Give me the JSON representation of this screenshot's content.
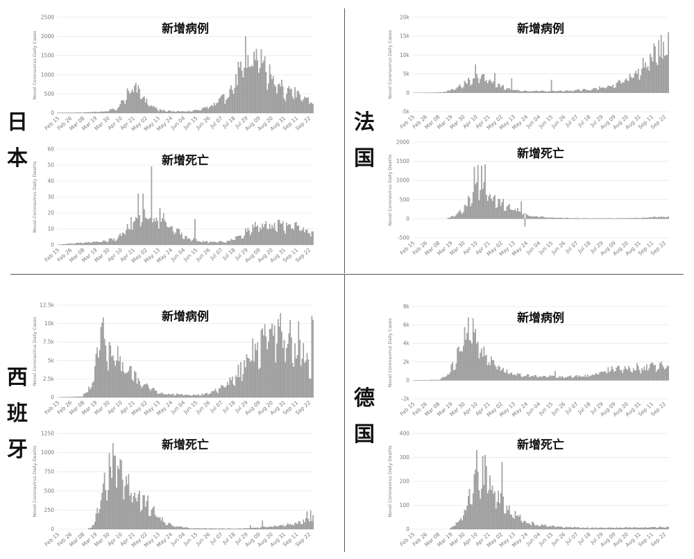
{
  "labels": {
    "japan": [
      "日",
      "本"
    ],
    "france": [
      "法",
      "国"
    ],
    "spain": [
      "西",
      "班",
      "牙"
    ],
    "germany": [
      "德",
      "国"
    ]
  },
  "chart_data": [
    {
      "type": "bar",
      "country": "japan",
      "title": "新增病例",
      "ylabel": "Novel Coronavirus Daily Cases",
      "ylim": [
        0,
        2500
      ],
      "yticks": [
        "0",
        "500",
        "1000",
        "1500",
        "2000",
        "2500"
      ],
      "xticks": [
        "Feb 15",
        "Feb 26",
        "Mar 08",
        "Mar 19",
        "Mar 30",
        "Apr 10",
        "Apr 21",
        "May 02",
        "May 13",
        "May 24",
        "Jun 04",
        "Jun 15",
        "Jun 26",
        "Jul 07",
        "Jul 18",
        "Jul 29",
        "Aug 09",
        "Aug 20",
        "Aug 31",
        "Sep 11",
        "Sep 22"
      ],
      "anchors": [
        [
          0,
          5
        ],
        [
          20,
          10
        ],
        [
          40,
          40
        ],
        [
          50,
          150
        ],
        [
          58,
          500
        ],
        [
          62,
          700
        ],
        [
          66,
          650
        ],
        [
          70,
          450
        ],
        [
          74,
          300
        ],
        [
          78,
          200
        ],
        [
          84,
          80
        ],
        [
          95,
          40
        ],
        [
          110,
          50
        ],
        [
          120,
          100
        ],
        [
          130,
          250
        ],
        [
          140,
          450
        ],
        [
          148,
          900
        ],
        [
          155,
          1400
        ],
        [
          160,
          1650
        ],
        [
          165,
          1500
        ],
        [
          170,
          1300
        ],
        [
          175,
          1100
        ],
        [
          180,
          900
        ],
        [
          185,
          700
        ],
        [
          192,
          550
        ],
        [
          200,
          520
        ],
        [
          207,
          450
        ],
        [
          212,
          270
        ]
      ],
      "spikes": [
        [
          156,
          2000
        ],
        [
          163,
          1600
        ]
      ]
    },
    {
      "type": "bar",
      "country": "japan",
      "title": "新增死亡",
      "ylabel": "Novel Coronavirus Daily Deaths",
      "ylim": [
        0,
        60
      ],
      "yticks": [
        "0",
        "10",
        "20",
        "30",
        "40",
        "50",
        "60"
      ],
      "xticks": [
        "Feb 15",
        "Feb 26",
        "Mar 08",
        "Mar 19",
        "Mar 30",
        "Apr 10",
        "Apr 21",
        "May 02",
        "May 13",
        "May 24",
        "Jun 04",
        "Jun 15",
        "Jun 26",
        "Jul 07",
        "Jul 18",
        "Jul 29",
        "Aug 09",
        "Aug 20",
        "Aug 31",
        "Sep 11",
        "Sep 22"
      ],
      "anchors": [
        [
          0,
          0
        ],
        [
          15,
          1
        ],
        [
          35,
          2
        ],
        [
          50,
          4
        ],
        [
          62,
          15
        ],
        [
          68,
          22
        ],
        [
          75,
          20
        ],
        [
          80,
          18
        ],
        [
          85,
          20
        ],
        [
          92,
          14
        ],
        [
          100,
          8
        ],
        [
          110,
          4
        ],
        [
          120,
          2
        ],
        [
          140,
          2
        ],
        [
          150,
          5
        ],
        [
          160,
          10
        ],
        [
          170,
          13
        ],
        [
          180,
          12
        ],
        [
          190,
          13
        ],
        [
          200,
          12
        ],
        [
          212,
          7
        ]
      ],
      "spikes": [
        [
          67,
          32
        ],
        [
          71,
          32
        ],
        [
          78,
          49
        ],
        [
          85,
          23
        ],
        [
          114,
          16
        ]
      ]
    },
    {
      "type": "bar",
      "country": "france",
      "title": "新增病例",
      "ylabel": "Novel Coronavirus Daily Cases",
      "ylim": [
        -5000,
        20000
      ],
      "yticks": [
        "-5k",
        "0",
        "5k",
        "10k",
        "15k",
        "20k"
      ],
      "xticks": [
        "Feb 15",
        "Feb 26",
        "Mar 08",
        "Mar 19",
        "Mar 30",
        "Apr 10",
        "Apr 21",
        "May 02",
        "May 13",
        "May 24",
        "Jun 04",
        "Jun 15",
        "Jun 26",
        "Jul 07",
        "Jul 18",
        "Jul 29",
        "Aug 09",
        "Aug 20",
        "Aug 31",
        "Sep 11",
        "Sep 22"
      ],
      "anchors": [
        [
          0,
          0
        ],
        [
          25,
          100
        ],
        [
          35,
          1000
        ],
        [
          45,
          3000
        ],
        [
          55,
          4500
        ],
        [
          65,
          3500
        ],
        [
          72,
          2000
        ],
        [
          80,
          1000
        ],
        [
          90,
          500
        ],
        [
          110,
          400
        ],
        [
          130,
          500
        ],
        [
          150,
          1000
        ],
        [
          165,
          2000
        ],
        [
          175,
          3500
        ],
        [
          185,
          5500
        ],
        [
          195,
          8500
        ],
        [
          205,
          12000
        ],
        [
          212,
          14000
        ]
      ],
      "spikes": [
        [
          52,
          7500
        ],
        [
          58,
          5000
        ],
        [
          68,
          5200
        ],
        [
          82,
          3800
        ],
        [
          115,
          3400
        ],
        [
          180,
          5000
        ],
        [
          212,
          16000
        ]
      ]
    },
    {
      "type": "bar",
      "country": "france",
      "title": "新增死亡",
      "ylabel": "Novel Coronavirus Daily Deaths",
      "ylim": [
        -500,
        2000
      ],
      "yticks": [
        "-500",
        "0",
        "500",
        "1000",
        "1500",
        "2000"
      ],
      "xticks": [
        "Feb 15",
        "Feb 26",
        "Mar 08",
        "Mar 19",
        "Mar 30",
        "Apr 10",
        "Apr 21",
        "May 02",
        "May 13",
        "May 24",
        "Jun 04",
        "Jun 15",
        "Jun 26",
        "Jul 07",
        "Jul 18",
        "Jul 29",
        "Aug 09",
        "Aug 20",
        "Aug 31",
        "Sep 11",
        "Sep 22"
      ],
      "anchors": [
        [
          0,
          0
        ],
        [
          28,
          0
        ],
        [
          35,
          80
        ],
        [
          43,
          300
        ],
        [
          50,
          700
        ],
        [
          56,
          900
        ],
        [
          62,
          700
        ],
        [
          70,
          500
        ],
        [
          78,
          350
        ],
        [
          85,
          250
        ],
        [
          92,
          150
        ],
        [
          100,
          60
        ],
        [
          115,
          25
        ],
        [
          140,
          10
        ],
        [
          170,
          10
        ],
        [
          190,
          20
        ],
        [
          200,
          40
        ],
        [
          212,
          50
        ]
      ],
      "spikes": [
        [
          51,
          1350
        ],
        [
          54,
          1400
        ],
        [
          57,
          1380
        ],
        [
          60,
          1420
        ],
        [
          90,
          450
        ],
        [
          93,
          -200
        ]
      ]
    },
    {
      "type": "bar",
      "country": "spain",
      "title": "新增病例",
      "ylabel": "Novel Coronavirus Daily Cases",
      "ylim": [
        0,
        12500
      ],
      "yticks": [
        "0",
        "2.5k",
        "5k",
        "7.5k",
        "10k",
        "12.5k"
      ],
      "xticks": [
        "Feb 15",
        "Feb 26",
        "Mar 08",
        "Mar 19",
        "Mar 30",
        "Apr 10",
        "Apr 21",
        "May 02",
        "May 13",
        "May 24",
        "Jun 04",
        "Jun 15",
        "Jun 26",
        "Jul 07",
        "Jul 18",
        "Jul 29",
        "Aug 09",
        "Aug 20",
        "Aug 31",
        "Sep 11",
        "Sep 22"
      ],
      "anchors": [
        [
          0,
          0
        ],
        [
          20,
          100
        ],
        [
          25,
          800
        ],
        [
          30,
          3000
        ],
        [
          33,
          7000
        ],
        [
          37,
          8000
        ],
        [
          42,
          7000
        ],
        [
          50,
          5500
        ],
        [
          58,
          3800
        ],
        [
          66,
          2500
        ],
        [
          76,
          1500
        ],
        [
          86,
          500
        ],
        [
          100,
          400
        ],
        [
          115,
          300
        ],
        [
          125,
          500
        ],
        [
          135,
          1200
        ],
        [
          145,
          2500
        ],
        [
          155,
          4500
        ],
        [
          165,
          7000
        ],
        [
          175,
          9000
        ],
        [
          185,
          9500
        ],
        [
          195,
          8000
        ],
        [
          205,
          5500
        ],
        [
          210,
          4500
        ],
        [
          212,
          10500
        ]
      ],
      "spikes": [
        [
          38,
          10800
        ],
        [
          200,
          10300
        ],
        [
          211,
          11000
        ]
      ]
    },
    {
      "type": "bar",
      "country": "spain",
      "title": "新增死亡",
      "ylabel": "Novel Coronavirus Daily Deaths",
      "ylim": [
        0,
        1250
      ],
      "yticks": [
        "0",
        "250",
        "500",
        "750",
        "1000",
        "1250"
      ],
      "xticks": [
        "Feb 15",
        "Feb 26",
        "Mar 08",
        "Mar 19",
        "Mar 30",
        "Apr 10",
        "Apr 21",
        "May 02",
        "May 13",
        "May 24",
        "Jun 04",
        "Jun 15",
        "Jun 26",
        "Jul 07",
        "Jul 18",
        "Jul 29",
        "Aug 09",
        "Aug 20",
        "Aug 31",
        "Sep 11",
        "Sep 22"
      ],
      "anchors": [
        [
          0,
          0
        ],
        [
          25,
          0
        ],
        [
          30,
          50
        ],
        [
          36,
          400
        ],
        [
          42,
          800
        ],
        [
          47,
          920
        ],
        [
          55,
          700
        ],
        [
          63,
          500
        ],
        [
          72,
          400
        ],
        [
          80,
          250
        ],
        [
          88,
          100
        ],
        [
          98,
          40
        ],
        [
          110,
          10
        ],
        [
          150,
          5
        ],
        [
          165,
          20
        ],
        [
          180,
          40
        ],
        [
          200,
          80
        ],
        [
          212,
          150
        ]
      ],
      "spikes": [
        [
          48,
          960
        ],
        [
          160,
          50
        ],
        [
          170,
          110
        ],
        [
          207,
          230
        ],
        [
          210,
          240
        ]
      ]
    },
    {
      "type": "bar",
      "country": "germany",
      "title": "新增病例",
      "ylabel": "Novel Coronavirus Daily Cases",
      "ylim": [
        -2000,
        8000
      ],
      "yticks": [
        "-2k",
        "0",
        "2k",
        "4k",
        "6k",
        "8k"
      ],
      "xticks": [
        "Feb 15",
        "Feb 26",
        "Mar 08",
        "Mar 19",
        "Mar 30",
        "Apr 10",
        "Apr 21",
        "May 02",
        "May 13",
        "May 24",
        "Jun 04",
        "Jun 15",
        "Jun 26",
        "Jul 07",
        "Jul 18",
        "Jul 29",
        "Aug 09",
        "Aug 20",
        "Aug 31",
        "Sep 11",
        "Sep 22"
      ],
      "anchors": [
        [
          0,
          0
        ],
        [
          22,
          50
        ],
        [
          30,
          800
        ],
        [
          38,
          3000
        ],
        [
          45,
          5500
        ],
        [
          52,
          4500
        ],
        [
          58,
          3000
        ],
        [
          66,
          2000
        ],
        [
          76,
          1000
        ],
        [
          90,
          600
        ],
        [
          110,
          450
        ],
        [
          125,
          350
        ],
        [
          145,
          500
        ],
        [
          165,
          1200
        ],
        [
          180,
          1400
        ],
        [
          195,
          1500
        ],
        [
          212,
          1800
        ]
      ],
      "spikes": [
        [
          46,
          6800
        ],
        [
          50,
          6700
        ],
        [
          118,
          1000
        ]
      ]
    },
    {
      "type": "bar",
      "country": "germany",
      "title": "新增死亡",
      "ylabel": "Novel Coronavirus Daily Deaths",
      "ylim": [
        0,
        400
      ],
      "yticks": [
        "0",
        "100",
        "200",
        "300",
        "400"
      ],
      "xticks": [
        "Feb 15",
        "Feb 26",
        "Mar 08",
        "Mar 19",
        "Mar 30",
        "Apr 10",
        "Apr 21",
        "May 02",
        "May 13",
        "May 24",
        "Jun 04",
        "Jun 15",
        "Jun 26",
        "Jul 07",
        "Jul 18",
        "Jul 29",
        "Aug 09",
        "Aug 20",
        "Aug 31",
        "Sep 11",
        "Sep 22"
      ],
      "anchors": [
        [
          0,
          0
        ],
        [
          30,
          0
        ],
        [
          38,
          30
        ],
        [
          46,
          130
        ],
        [
          54,
          230
        ],
        [
          60,
          220
        ],
        [
          66,
          180
        ],
        [
          74,
          120
        ],
        [
          82,
          70
        ],
        [
          92,
          40
        ],
        [
          102,
          20
        ],
        [
          120,
          10
        ],
        [
          150,
          5
        ],
        [
          212,
          8
        ]
      ],
      "spikes": [
        [
          53,
          330
        ],
        [
          58,
          305
        ],
        [
          60,
          310
        ],
        [
          74,
          280
        ]
      ]
    }
  ]
}
